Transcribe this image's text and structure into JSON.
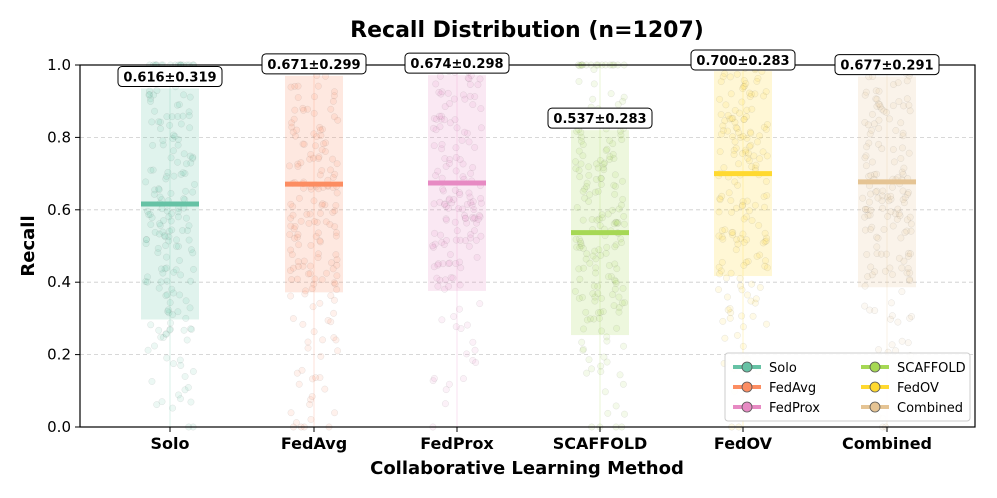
{
  "chart_data": {
    "type": "strip-box",
    "title": "Recall Distribution (n=1207)",
    "xlabel": "Collaborative Learning Method",
    "ylabel": "Recall",
    "ylim": [
      0.0,
      1.0
    ],
    "yticks": [
      "0.0",
      "0.2",
      "0.4",
      "0.6",
      "0.8",
      "1.0"
    ],
    "grid": "horizontal-dashed",
    "legend_position": "lower-right",
    "n": 1207,
    "categories": [
      "Solo",
      "FedAvg",
      "FedProx",
      "SCAFFOLD",
      "FedOV",
      "Combined"
    ],
    "series": [
      {
        "name": "Solo",
        "mean": 0.616,
        "std": 0.319,
        "label": "0.616±0.319",
        "band_low": 0.297,
        "band_high": 0.935,
        "color": "#66c2a5"
      },
      {
        "name": "FedAvg",
        "mean": 0.671,
        "std": 0.299,
        "label": "0.671±0.299",
        "band_low": 0.372,
        "band_high": 0.97,
        "color": "#fc8d62"
      },
      {
        "name": "FedProx",
        "mean": 0.674,
        "std": 0.298,
        "label": "0.674±0.298",
        "band_low": 0.376,
        "band_high": 0.972,
        "color": "#e78ac3"
      },
      {
        "name": "SCAFFOLD",
        "mean": 0.537,
        "std": 0.283,
        "label": "0.537±0.283",
        "band_low": 0.254,
        "band_high": 0.82,
        "color": "#a6d854"
      },
      {
        "name": "FedOV",
        "mean": 0.7,
        "std": 0.283,
        "label": "0.700±0.283",
        "band_low": 0.417,
        "band_high": 0.983,
        "color": "#ffd92f"
      },
      {
        "name": "Combined",
        "mean": 0.677,
        "std": 0.291,
        "label": "0.677±0.291",
        "band_low": 0.386,
        "band_high": 0.968,
        "color": "#e5c494"
      }
    ]
  }
}
